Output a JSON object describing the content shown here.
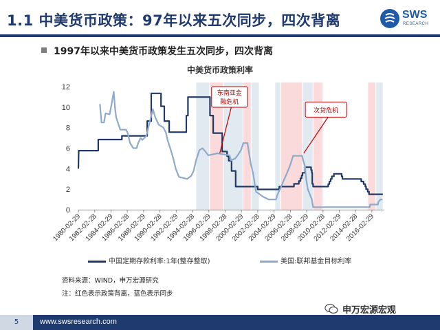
{
  "header": {
    "title": "1.1 中美货币政策：97年以来五次同步，四次背离",
    "logo_text": "SWS",
    "logo_sub": "RESEARCH"
  },
  "bullet": "1997年以来中美货币政策发生五次同步，四次背离",
  "source": "资料来源：WIND，申万宏源研究",
  "note": "注：红色表示政策背离，蓝色表示同步",
  "footer": {
    "page": "5",
    "url": "www.swsresearch.com"
  },
  "wechat": {
    "label": "申万宏源宏观",
    "icon": "wechat-icon"
  },
  "colors": {
    "china": "#1f3864",
    "us": "#8eaacb",
    "divergence": "#f9d4d4",
    "sync": "#dde6ef",
    "title_navy": "#1f3a6e",
    "annotation_red": "#c00000"
  },
  "chart_data": {
    "type": "line",
    "title": "中美货币政策利率",
    "ylim": [
      0,
      12
    ],
    "yticks": [
      0,
      2,
      4,
      6,
      8,
      10,
      12
    ],
    "xlim": [
      1980.16,
      2017.6
    ],
    "xtick_labels": [
      "1980-02-29",
      "1982-02-28",
      "1984-02-29",
      "1986-02-28",
      "1988-02-29",
      "1990-02-28",
      "1992-02-29",
      "1994-02-28",
      "1996-02-29",
      "1998-02-28",
      "2000-02-29",
      "2002-02-28",
      "2004-02-29",
      "2006-02-28",
      "2008-02-29",
      "2010-02-28",
      "2012-02-29",
      "2014-02-28",
      "2016-02-29"
    ],
    "grid": false,
    "legend_position": "bottom",
    "shaded_periods": [
      {
        "kind": "sync",
        "from": 1994.6,
        "to": 1996.2
      },
      {
        "kind": "divergence",
        "from": 1996.3,
        "to": 1997.9
      },
      {
        "kind": "sync",
        "from": 1998.0,
        "to": 2000.3
      },
      {
        "kind": "divergence",
        "from": 2000.4,
        "to": 2001.3
      },
      {
        "kind": "sync",
        "from": 2001.4,
        "to": 2002.3
      },
      {
        "kind": "sync",
        "from": 2004.3,
        "to": 2004.9
      },
      {
        "kind": "divergence",
        "from": 2005.0,
        "to": 2007.6
      },
      {
        "kind": "sync",
        "from": 2007.7,
        "to": 2008.9
      },
      {
        "kind": "divergence",
        "from": 2009.0,
        "to": 2010.1
      },
      {
        "kind": "divergence",
        "from": 2015.7,
        "to": 2016.6
      },
      {
        "kind": "sync",
        "from": 2016.7,
        "to": 2017.5
      }
    ],
    "annotations": [
      {
        "text": "东南亚金融危机",
        "x": 1997.5,
        "y": 5.5,
        "box_x": 1996.5,
        "box_y": 12.0
      },
      {
        "text": "次贷危机",
        "x": 2007.8,
        "y": 5.5,
        "box_x": 2008.0,
        "box_y": 10.5
      }
    ],
    "series": [
      {
        "name": "中国定期存款利率:1年(整存整取)",
        "color": "#1f3864",
        "points": [
          [
            1980.16,
            4.0
          ],
          [
            1980.2,
            5.76
          ],
          [
            1982.6,
            5.76
          ],
          [
            1982.6,
            6.84
          ],
          [
            1985.5,
            6.84
          ],
          [
            1985.5,
            7.2
          ],
          [
            1988.6,
            7.2
          ],
          [
            1988.6,
            8.64
          ],
          [
            1989.1,
            8.64
          ],
          [
            1989.1,
            11.34
          ],
          [
            1990.3,
            11.34
          ],
          [
            1990.3,
            10.08
          ],
          [
            1990.7,
            10.08
          ],
          [
            1990.7,
            8.64
          ],
          [
            1991.3,
            8.64
          ],
          [
            1991.3,
            7.56
          ],
          [
            1993.4,
            7.56
          ],
          [
            1993.4,
            9.18
          ],
          [
            1993.6,
            9.18
          ],
          [
            1993.6,
            10.98
          ],
          [
            1996.3,
            10.98
          ],
          [
            1996.3,
            9.18
          ],
          [
            1996.7,
            9.18
          ],
          [
            1996.7,
            7.47
          ],
          [
            1997.8,
            7.47
          ],
          [
            1997.8,
            5.67
          ],
          [
            1998.4,
            5.67
          ],
          [
            1998.4,
            5.22
          ],
          [
            1998.6,
            5.22
          ],
          [
            1998.6,
            4.77
          ],
          [
            1998.95,
            4.77
          ],
          [
            1998.95,
            3.78
          ],
          [
            1999.45,
            3.78
          ],
          [
            1999.45,
            2.25
          ],
          [
            2002.15,
            2.25
          ],
          [
            2002.15,
            1.98
          ],
          [
            2004.8,
            1.98
          ],
          [
            2004.8,
            2.25
          ],
          [
            2006.6,
            2.25
          ],
          [
            2006.6,
            2.52
          ],
          [
            2007.2,
            2.52
          ],
          [
            2007.2,
            2.79
          ],
          [
            2007.4,
            2.79
          ],
          [
            2007.4,
            3.06
          ],
          [
            2007.55,
            3.06
          ],
          [
            2007.55,
            3.33
          ],
          [
            2007.65,
            3.33
          ],
          [
            2007.65,
            3.6
          ],
          [
            2007.97,
            3.6
          ],
          [
            2007.97,
            4.14
          ],
          [
            2008.7,
            4.14
          ],
          [
            2008.7,
            3.87
          ],
          [
            2008.8,
            3.87
          ],
          [
            2008.8,
            3.6
          ],
          [
            2008.85,
            3.6
          ],
          [
            2008.85,
            2.52
          ],
          [
            2008.95,
            2.52
          ],
          [
            2008.95,
            2.25
          ],
          [
            2010.8,
            2.25
          ],
          [
            2010.8,
            2.5
          ],
          [
            2010.95,
            2.5
          ],
          [
            2010.95,
            2.75
          ],
          [
            2011.1,
            2.75
          ],
          [
            2011.1,
            3.0
          ],
          [
            2011.25,
            3.0
          ],
          [
            2011.25,
            3.25
          ],
          [
            2011.5,
            3.25
          ],
          [
            2011.5,
            3.5
          ],
          [
            2012.45,
            3.5
          ],
          [
            2012.45,
            3.25
          ],
          [
            2012.55,
            3.25
          ],
          [
            2012.55,
            3.0
          ],
          [
            2014.85,
            3.0
          ],
          [
            2014.85,
            2.75
          ],
          [
            2015.15,
            2.75
          ],
          [
            2015.15,
            2.5
          ],
          [
            2015.35,
            2.5
          ],
          [
            2015.35,
            2.25
          ],
          [
            2015.45,
            2.25
          ],
          [
            2015.45,
            2.0
          ],
          [
            2015.65,
            2.0
          ],
          [
            2015.65,
            1.75
          ],
          [
            2015.8,
            1.75
          ],
          [
            2015.8,
            1.5
          ],
          [
            2017.5,
            1.5
          ]
        ]
      },
      {
        "name": "美国:联邦基金目标利率",
        "color": "#8eaacb",
        "points": [
          [
            1982.8,
            10.3
          ],
          [
            1983.0,
            8.5
          ],
          [
            1983.3,
            8.5
          ],
          [
            1983.5,
            9.4
          ],
          [
            1984.0,
            9.3
          ],
          [
            1984.3,
            10.6
          ],
          [
            1984.5,
            11.5
          ],
          [
            1984.65,
            10.0
          ],
          [
            1984.8,
            9.0
          ],
          [
            1985.0,
            8.5
          ],
          [
            1985.3,
            7.8
          ],
          [
            1985.6,
            7.8
          ],
          [
            1986.0,
            7.8
          ],
          [
            1986.2,
            7.5
          ],
          [
            1986.5,
            6.5
          ],
          [
            1986.9,
            6.0
          ],
          [
            1987.3,
            6.0
          ],
          [
            1987.5,
            6.5
          ],
          [
            1987.8,
            7.0
          ],
          [
            1988.0,
            6.8
          ],
          [
            1988.5,
            7.2
          ],
          [
            1988.9,
            8.5
          ],
          [
            1989.3,
            9.8
          ],
          [
            1989.6,
            9.0
          ],
          [
            1990.0,
            8.3
          ],
          [
            1990.6,
            8.0
          ],
          [
            1990.9,
            7.5
          ],
          [
            1991.1,
            6.8
          ],
          [
            1991.5,
            5.8
          ],
          [
            1991.8,
            5.0
          ],
          [
            1992.1,
            4.0
          ],
          [
            1992.5,
            3.2
          ],
          [
            1993.5,
            3.0
          ],
          [
            1994.0,
            3.3
          ],
          [
            1994.3,
            3.8
          ],
          [
            1994.6,
            4.8
          ],
          [
            1995.0,
            5.8
          ],
          [
            1995.4,
            6.0
          ],
          [
            1995.6,
            5.8
          ],
          [
            1996.1,
            5.3
          ],
          [
            1997.2,
            5.5
          ],
          [
            1998.7,
            5.3
          ],
          [
            1998.9,
            4.8
          ],
          [
            1999.4,
            5.0
          ],
          [
            1999.7,
            5.3
          ],
          [
            2000.1,
            5.8
          ],
          [
            2000.4,
            6.5
          ],
          [
            2000.9,
            6.5
          ],
          [
            2001.1,
            5.5
          ],
          [
            2001.3,
            4.5
          ],
          [
            2001.6,
            3.5
          ],
          [
            2001.8,
            2.5
          ],
          [
            2001.95,
            1.75
          ],
          [
            2002.85,
            1.25
          ],
          [
            2003.5,
            1.0
          ],
          [
            2004.4,
            1.0
          ],
          [
            2004.6,
            1.5
          ],
          [
            2004.9,
            2.0
          ],
          [
            2005.3,
            2.75
          ],
          [
            2005.7,
            3.5
          ],
          [
            2006.1,
            4.25
          ],
          [
            2006.5,
            5.25
          ],
          [
            2007.6,
            5.25
          ],
          [
            2007.75,
            4.75
          ],
          [
            2007.95,
            4.25
          ],
          [
            2008.1,
            3.0
          ],
          [
            2008.3,
            2.0
          ],
          [
            2008.8,
            1.0
          ],
          [
            2008.95,
            0.25
          ],
          [
            2015.9,
            0.25
          ],
          [
            2015.95,
            0.5
          ],
          [
            2016.9,
            0.5
          ],
          [
            2016.95,
            0.75
          ],
          [
            2017.2,
            1.0
          ],
          [
            2017.45,
            1.0
          ]
        ]
      }
    ]
  }
}
